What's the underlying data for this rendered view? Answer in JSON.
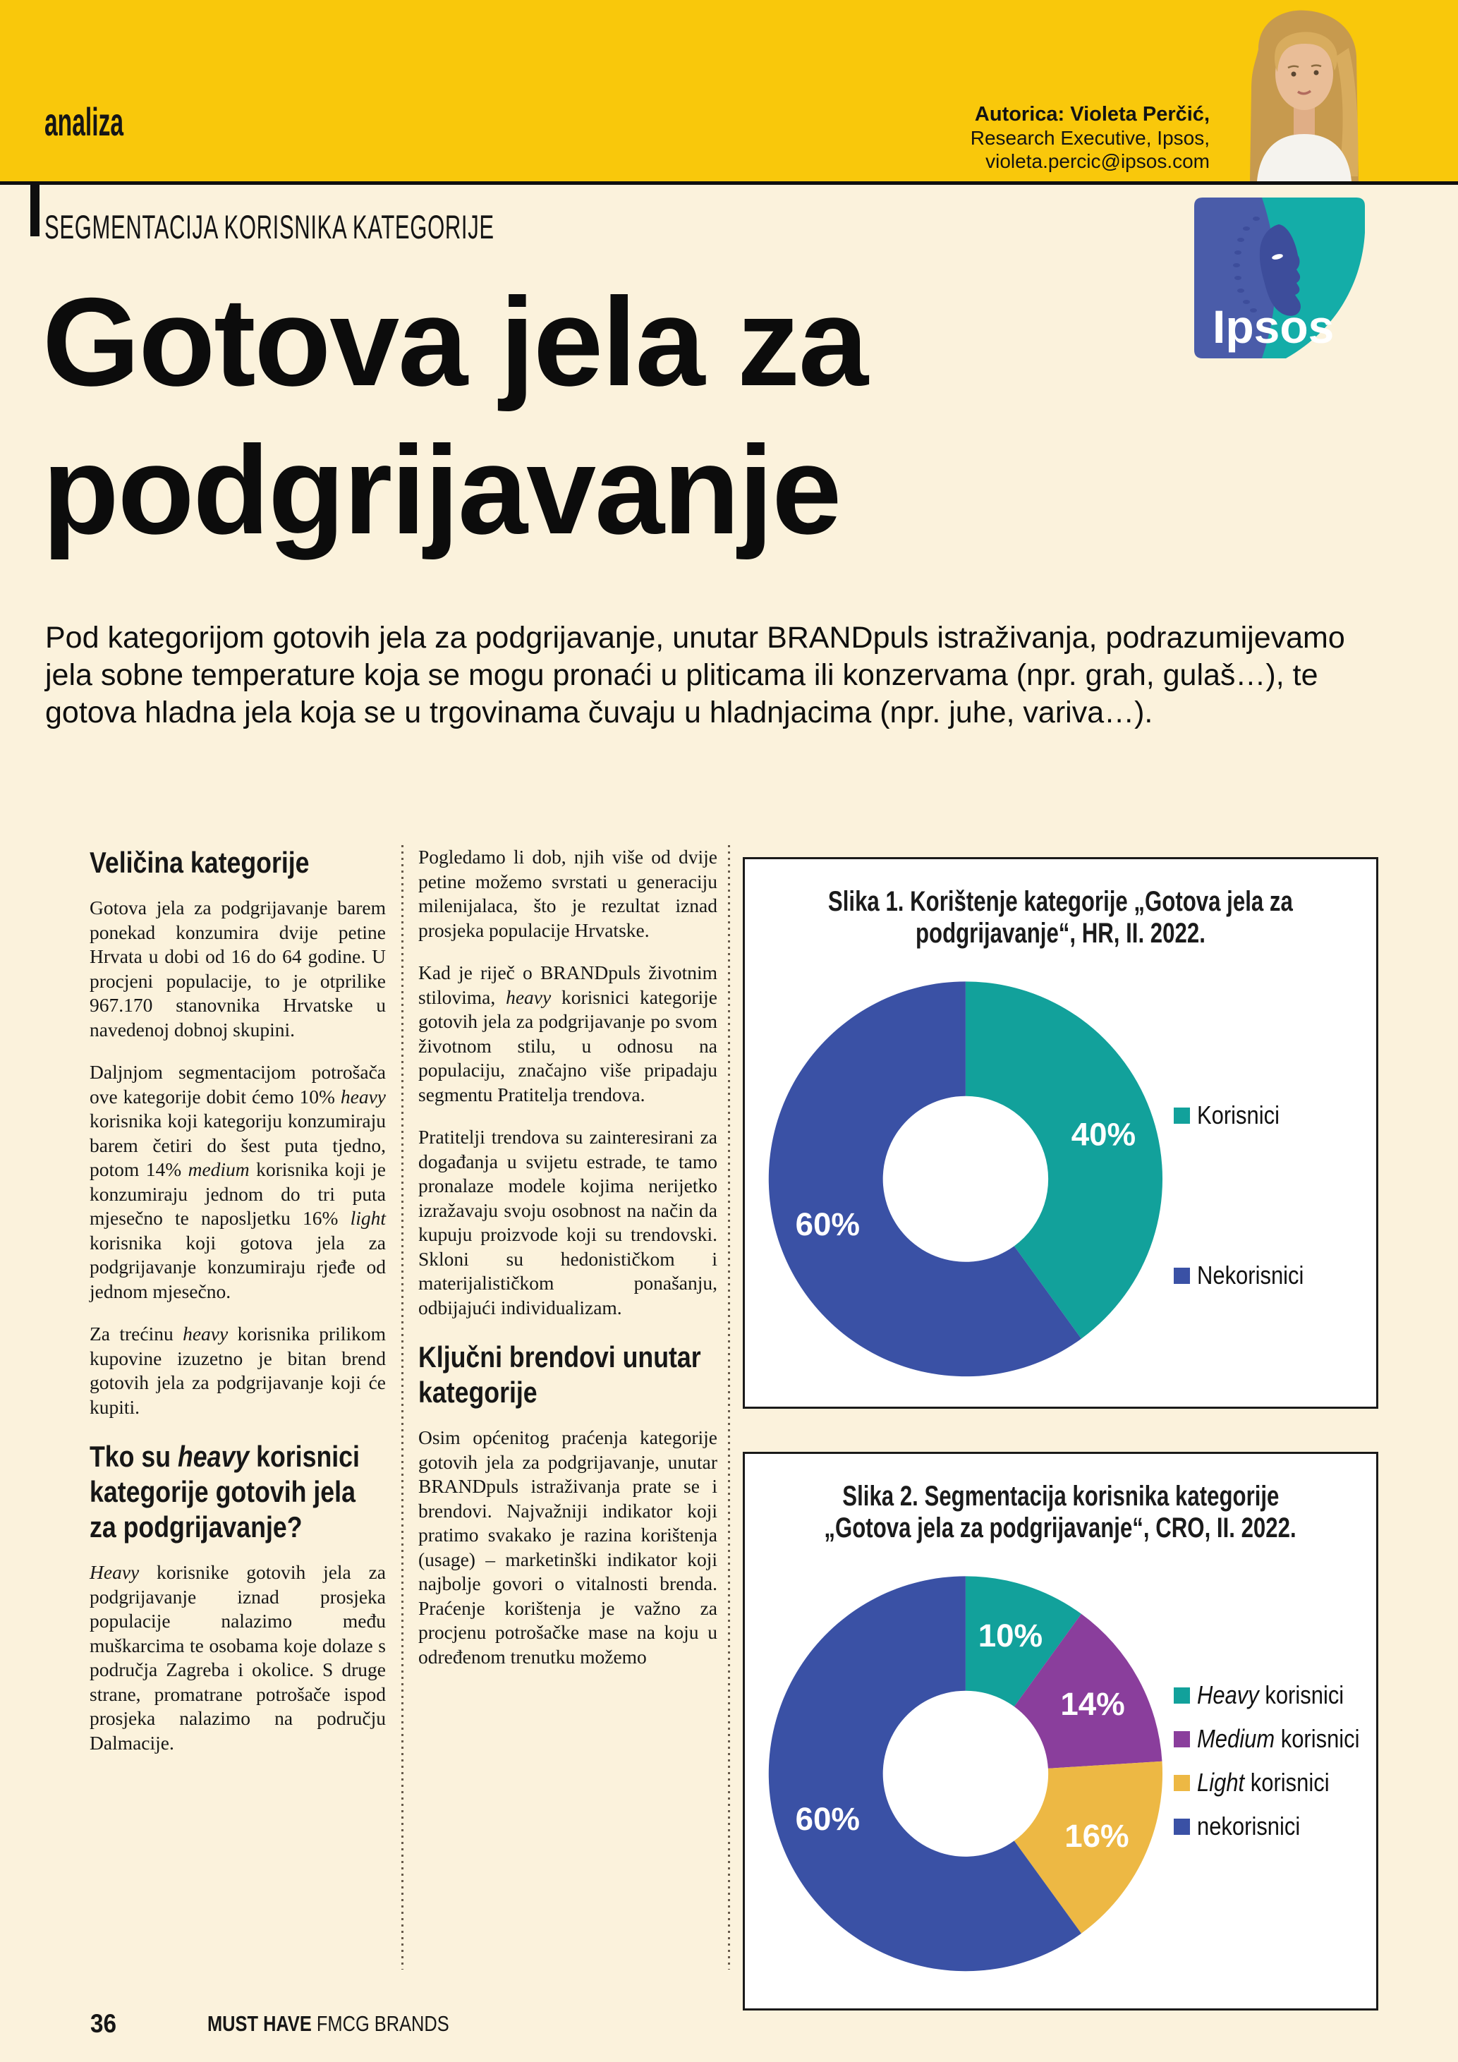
{
  "colors": {
    "band_yellow": "#F9C80B",
    "page_cream": "#FBF2DC",
    "ink": "#161616",
    "teal": "#12A19B",
    "blue": "#3A51A5",
    "purple": "#8A3E9C",
    "gold": "#EDB844",
    "logo_blue": "#4A5CA9",
    "logo_teal": "#14ADA8"
  },
  "header": {
    "magazine_section": "analiza",
    "section_label": "SEGMENTACIJA KORISNIKA KATEGORIJE",
    "author": {
      "name_line": "Autorica: Violeta Perčić,",
      "role_line": "Research Executive, Ipsos,",
      "email": "violeta.percic@ipsos.com"
    }
  },
  "logo_text": "Ipsos",
  "title": {
    "line1": "Gotova jela za",
    "line2": "podgrijavanje"
  },
  "intro": "Pod kategorijom gotovih jela za podgrijavanje, unutar BRANDpuls istraživanja, podrazumijevamo jela sobne temperature koja se mogu pronaći u pliticama ili konzervama (npr. grah, gulaš…), te gotova hladna jela koja se u trgovinama čuvaju u hladnjacima (npr. juhe, variva…).",
  "columns": {
    "col1": {
      "heading1": "Veličina kategorije",
      "p1": "Gotova jela za podgrijavanje barem ponekad konzumira dvije petine Hrvata u dobi od 16 do 64 godine. U procjeni populacije, to je otprilike 967.170 stanovnika Hrvatske u navedenoj dobnoj skupini.",
      "p2": "Daljnjom segmentacijom potrošača ove kategorije dobit ćemo 10% *heavy* korisnika koji kategoriju konzumiraju barem četiri do šest puta tjedno, potom 14% *medium* korisnika koji je konzumiraju jednom do tri puta mjesečno te naposljetku 16% *light* korisnika koji gotova jela za podgrijavanje konzumiraju rjeđe od jednom mjesečno.",
      "p3": "Za trećinu *heavy* korisnika prilikom kupovine izuzetno je bitan brend gotovih jela za podgrijavanje koji će kupiti.",
      "heading2": "Tko su *heavy* korisnici kategorije gotovih jela za podgrijavanje?",
      "p4": "*Heavy* korisnike gotovih jela za podgrijavanje iznad prosjeka populacije nalazimo među muškarcima te osobama koje dolaze s područja Zagreba i okolice. S druge strane, promatrane potrošače ispod prosjeka nalazimo na području Dalmacije."
    },
    "col2": {
      "p1": "Pogledamo li dob, njih više od dvije petine možemo svrstati u generaciju milenijalaca, što je rezultat iznad prosjeka populacije Hrvatske.",
      "p2": "Kad je riječ o BRANDpuls životnim stilovima, *heavy* korisnici kategorije gotovih jela za podgrijavanje po svom životnom stilu, u odnosu na populaciju, značajno više pripadaju segmentu Pratitelja trendova.",
      "p3": "Pratitelji trendova su zainteresirani za događanja u svijetu estrade, te tamo pronalaze modele kojima nerijetko izražavaju svoju osobnost na način da kupuju proizvode koji su trendovski. Skloni su hedonističkom i materijalističkom ponašanju, odbijajući individualizam.",
      "heading": "Ključni brendovi unutar kategorije",
      "p4": "Osim općenitog praćenja kategorije gotovih jela za podgrijavanje, unutar BRANDpuls istraživanja prate se i brendovi. Najvažniji indikator koji pratimo svakako je razina korištenja (usage) – marketinški indikator koji najbolje govori o vitalnosti brenda. Praćenje korištenja je važno za procjenu potrošačke mase na koju u određenom trenutku možemo"
    }
  },
  "chart_data": [
    {
      "type": "donut",
      "title_line1": "Slika 1. Korištenje kategorije „Gotova jela za",
      "title_line2": "podgrijavanje“, HR, II. 2022.",
      "legend_position": "right",
      "unit": "%",
      "segments": [
        {
          "label": "Korisnici",
          "value": 40,
          "data_label": "40%",
          "color": "#12A19B"
        },
        {
          "label": "Nekorisnici",
          "value": 60,
          "data_label": "60%",
          "color": "#3A51A5"
        }
      ]
    },
    {
      "type": "donut",
      "title_line1": "Slika 2. Segmentacija korisnika kategorije",
      "title_line2": "„Gotova jela za podgrijavanje“, CRO, II. 2022.",
      "legend_position": "right",
      "unit": "%",
      "segments": [
        {
          "label": "*Heavy* korisnici",
          "value": 10,
          "data_label": "10%",
          "color": "#12A19B"
        },
        {
          "label": "*Medium* korisnici",
          "value": 14,
          "data_label": "14%",
          "color": "#8A3E9C"
        },
        {
          "label": "*Light* korisnici",
          "value": 16,
          "data_label": "16%",
          "color": "#EDB844"
        },
        {
          "label": "nekorisnici",
          "value": 60,
          "data_label": "60%",
          "color": "#3A51A5"
        }
      ]
    }
  ],
  "footer": {
    "page_number": "36",
    "brand_bold": "MUST HAVE",
    "brand_rest": " FMCG BRANDS"
  }
}
